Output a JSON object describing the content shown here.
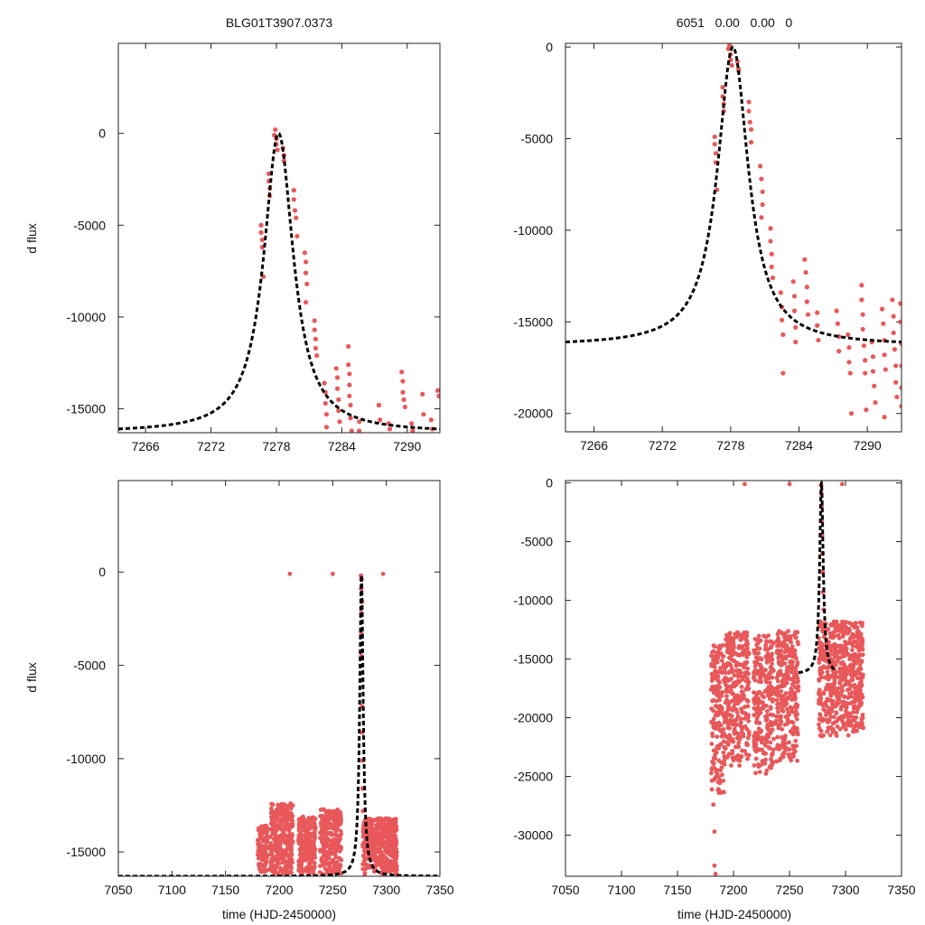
{
  "figure": {
    "title_left": "BLG01T3907.0373",
    "title_right": "6051   0.00   0.00   0",
    "xlabel": "time (HJD-2450000)",
    "ylabel": "d flux"
  },
  "colors": {
    "points": "#e8585a",
    "model": "#000000",
    "frame": "#222222"
  },
  "chart_data": [
    {
      "id": "top-left",
      "type": "scatter",
      "title": "BLG01T3907.0373",
      "xlabel": "",
      "ylabel": "d flux",
      "xlim": [
        7263.5,
        7293
      ],
      "ylim": [
        -16300,
        4900
      ],
      "xticks": [
        7266,
        7272,
        7278,
        7284,
        7290
      ],
      "yticks": [
        0,
        -5000,
        -10000,
        -15000
      ],
      "model": {
        "t0": 7278.2,
        "fmin": -16300,
        "width": 1.65,
        "shape": "lorentz"
      },
      "series": [
        {
          "name": "data",
          "points": [
            [
              7276.6,
              -5000
            ],
            [
              7276.6,
              -5400
            ],
            [
              7276.7,
              -5800
            ],
            [
              7276.7,
              -6200
            ],
            [
              7276.8,
              -7800
            ],
            [
              7277.3,
              -2200
            ],
            [
              7277.3,
              -2600
            ],
            [
              7277.4,
              -3000
            ],
            [
              7277.4,
              -3400
            ],
            [
              7277.8,
              -100
            ],
            [
              7277.9,
              200
            ],
            [
              7278.0,
              -300
            ],
            [
              7278.0,
              -600
            ],
            [
              7278.1,
              -900
            ],
            [
              7278.6,
              -800
            ],
            [
              7278.7,
              -1200
            ],
            [
              7278.7,
              -1500
            ],
            [
              7279.6,
              -3100
            ],
            [
              7279.6,
              -3600
            ],
            [
              7279.7,
              -4200
            ],
            [
              7279.8,
              -4600
            ],
            [
              7279.9,
              -5600
            ],
            [
              7280.6,
              -6500
            ],
            [
              7280.7,
              -7000
            ],
            [
              7280.7,
              -7600
            ],
            [
              7280.8,
              -8200
            ],
            [
              7280.7,
              -9200
            ],
            [
              7281.5,
              -10200
            ],
            [
              7281.5,
              -10700
            ],
            [
              7281.6,
              -11200
            ],
            [
              7281.6,
              -11700
            ],
            [
              7281.7,
              -12100
            ],
            [
              7282.4,
              -13600
            ],
            [
              7282.5,
              -14100
            ],
            [
              7282.5,
              -14700
            ],
            [
              7282.6,
              -15300
            ],
            [
              7282.6,
              -16000
            ],
            [
              7283.5,
              -12800
            ],
            [
              7283.6,
              -13300
            ],
            [
              7283.6,
              -13900
            ],
            [
              7283.7,
              -14500
            ],
            [
              7283.7,
              -15100
            ],
            [
              7283.8,
              -15700
            ],
            [
              7284.6,
              -11600
            ],
            [
              7284.6,
              -12600
            ],
            [
              7284.7,
              -13100
            ],
            [
              7284.7,
              -13700
            ],
            [
              7284.7,
              -14300
            ],
            [
              7284.8,
              -14800
            ],
            [
              7284.8,
              -15500
            ],
            [
              7284.9,
              -16200
            ],
            [
              7285.6,
              -15700
            ],
            [
              7285.6,
              -16200
            ],
            [
              7287.4,
              -14800
            ],
            [
              7287.5,
              -15600
            ],
            [
              7288.3,
              -15800
            ],
            [
              7288.4,
              -16100
            ],
            [
              7289.5,
              -13000
            ],
            [
              7289.6,
              -13500
            ],
            [
              7289.6,
              -14100
            ],
            [
              7289.7,
              -14500
            ],
            [
              7289.8,
              -14900
            ],
            [
              7290.4,
              -15800
            ],
            [
              7290.5,
              -16200
            ],
            [
              7291.4,
              -14200
            ],
            [
              7291.5,
              -15300
            ],
            [
              7292.2,
              -15600
            ],
            [
              7292.3,
              -16100
            ],
            [
              7292.8,
              -14000
            ],
            [
              7292.9,
              -14300
            ]
          ]
        }
      ]
    },
    {
      "id": "top-right",
      "type": "scatter",
      "title": "6051   0.00   0.00   0",
      "xlabel": "",
      "ylabel": "",
      "xlim": [
        7263.5,
        7293
      ],
      "ylim": [
        -21000,
        200
      ],
      "xticks": [
        7266,
        7272,
        7278,
        7284,
        7290
      ],
      "yticks": [
        0,
        -5000,
        -10000,
        -15000,
        -20000
      ],
      "model": {
        "t0": 7278.2,
        "fmin": -16300,
        "width": 1.65,
        "shape": "lorentz"
      },
      "series": [
        {
          "name": "data",
          "points": [
            [
              7276.6,
              -4900
            ],
            [
              7276.6,
              -5300
            ],
            [
              7276.7,
              -5800
            ],
            [
              7276.7,
              -6300
            ],
            [
              7276.8,
              -7800
            ],
            [
              7277.3,
              -2200
            ],
            [
              7277.3,
              -2700
            ],
            [
              7277.4,
              -3100
            ],
            [
              7277.4,
              -3500
            ],
            [
              7277.8,
              -100
            ],
            [
              7277.9,
              100
            ],
            [
              7278.0,
              -400
            ],
            [
              7278.0,
              -700
            ],
            [
              7278.1,
              -1000
            ],
            [
              7278.6,
              -800
            ],
            [
              7278.7,
              -1200
            ],
            [
              7278.7,
              -1300
            ],
            [
              7279.6,
              -3000
            ],
            [
              7279.6,
              -3500
            ],
            [
              7279.7,
              -4100
            ],
            [
              7279.8,
              -4500
            ],
            [
              7279.8,
              -5200
            ],
            [
              7280.6,
              -6500
            ],
            [
              7280.7,
              -7200
            ],
            [
              7280.8,
              -7900
            ],
            [
              7280.8,
              -8600
            ],
            [
              7280.7,
              -9300
            ],
            [
              7281.5,
              -9900
            ],
            [
              7281.5,
              -10600
            ],
            [
              7281.6,
              -11300
            ],
            [
              7281.6,
              -12000
            ],
            [
              7281.7,
              -12600
            ],
            [
              7282.4,
              -13400
            ],
            [
              7282.5,
              -14200
            ],
            [
              7282.5,
              -14900
            ],
            [
              7282.6,
              -15700
            ],
            [
              7282.6,
              -17800
            ],
            [
              7283.5,
              -12800
            ],
            [
              7283.6,
              -13600
            ],
            [
              7283.6,
              -14400
            ],
            [
              7283.7,
              -15300
            ],
            [
              7283.7,
              -16100
            ],
            [
              7284.5,
              -11600
            ],
            [
              7284.6,
              -12300
            ],
            [
              7284.7,
              -13100
            ],
            [
              7284.7,
              -13900
            ],
            [
              7284.8,
              -14600
            ],
            [
              7285.6,
              -14500
            ],
            [
              7285.6,
              -15200
            ],
            [
              7285.7,
              -16000
            ],
            [
              7287.3,
              -14400
            ],
            [
              7287.4,
              -15100
            ],
            [
              7287.5,
              -15800
            ],
            [
              7287.5,
              -16600
            ],
            [
              7288.3,
              -15700
            ],
            [
              7288.4,
              -16400
            ],
            [
              7288.4,
              -17200
            ],
            [
              7288.5,
              -17800
            ],
            [
              7289.5,
              -13000
            ],
            [
              7289.5,
              -13800
            ],
            [
              7289.6,
              -14600
            ],
            [
              7289.6,
              -15400
            ],
            [
              7289.7,
              -16300
            ],
            [
              7289.8,
              -17100
            ],
            [
              7289.8,
              -17800
            ],
            [
              7290.4,
              -16100
            ],
            [
              7290.5,
              -16900
            ],
            [
              7290.5,
              -17700
            ],
            [
              7290.6,
              -18500
            ],
            [
              7290.7,
              -19400
            ],
            [
              7291.3,
              -14300
            ],
            [
              7291.4,
              -15100
            ],
            [
              7291.5,
              -16000
            ],
            [
              7291.5,
              -16800
            ],
            [
              7291.6,
              -17600
            ],
            [
              7292.2,
              -13800
            ],
            [
              7292.3,
              -14700
            ],
            [
              7292.3,
              -15600
            ],
            [
              7292.4,
              -16500
            ],
            [
              7292.5,
              -17400
            ],
            [
              7292.5,
              -18300
            ],
            [
              7292.6,
              -19100
            ],
            [
              7292.9,
              -14000
            ],
            [
              7292.9,
              -15000
            ],
            [
              7293.0,
              -16200
            ],
            [
              7293.0,
              -17400
            ],
            [
              7293.0,
              -18600
            ],
            [
              7293.0,
              -19600
            ],
            [
              7289.9,
              -19800
            ],
            [
              7291.5,
              -20200
            ],
            [
              7288.6,
              -20000
            ]
          ]
        }
      ]
    },
    {
      "id": "bottom-left",
      "type": "scatter",
      "title": "",
      "xlabel": "time (HJD-2450000)",
      "ylabel": "d flux",
      "xlim": [
        7050,
        7350
      ],
      "ylim": [
        -16300,
        4900
      ],
      "xticks": [
        7050,
        7100,
        7150,
        7200,
        7250,
        7300,
        7350
      ],
      "yticks": [
        0,
        -5000,
        -10000,
        -15000
      ],
      "model": {
        "t0": 7276.8,
        "fmin": -16300,
        "width": 1.9,
        "shape": "lorentz"
      },
      "outliers": [
        [
          7210,
          -100
        ],
        [
          7250,
          -100
        ],
        [
          7297,
          -100
        ]
      ],
      "clusters": [
        {
          "x": [
            7180,
            7190
          ],
          "ymin": -16100,
          "ymax": -13600
        },
        {
          "x": [
            7192,
            7213
          ],
          "ymin": -16200,
          "ymax": -12400
        },
        {
          "x": [
            7218,
            7234
          ],
          "ymin": -16200,
          "ymax": -13100
        },
        {
          "x": [
            7238,
            7258
          ],
          "ymin": -16200,
          "ymax": -12700
        },
        {
          "x": [
            7278,
            7310
          ],
          "ymin": -16200,
          "ymax": -13200
        }
      ],
      "series": [
        {
          "name": "data",
          "points": [
            [
              7276.4,
              -200
            ],
            [
              7276.6,
              -900
            ],
            [
              7276.7,
              -2200
            ],
            [
              7276.8,
              -3300
            ],
            [
              7276.9,
              -4500
            ],
            [
              7277.1,
              -5800
            ],
            [
              7277.3,
              -7200
            ],
            [
              7277.5,
              -8600
            ],
            [
              7277.8,
              -10100
            ],
            [
              7278.0,
              -11600
            ],
            [
              7278.3,
              -12800
            ],
            [
              7276.9,
              -400
            ],
            [
              7277.2,
              -1600
            ]
          ]
        }
      ]
    },
    {
      "id": "bottom-right",
      "type": "scatter",
      "title": "",
      "xlabel": "time (HJD-2450000)",
      "ylabel": "",
      "xlim": [
        7050,
        7350
      ],
      "ylim": [
        -33500,
        200
      ],
      "xticks": [
        7050,
        7100,
        7150,
        7200,
        7250,
        7300,
        7350
      ],
      "yticks": [
        0,
        -5000,
        -10000,
        -15000,
        -20000,
        -25000,
        -30000
      ],
      "model": {
        "t0": 7278.5,
        "fmin": -16300,
        "width": 1.9,
        "shape": "lorentz",
        "x_range": [
          7258,
          7292
        ]
      },
      "outliers": [
        [
          7210,
          -100
        ],
        [
          7250,
          -100
        ],
        [
          7297,
          -100
        ],
        [
          7183,
          -29700
        ],
        [
          7183,
          -32600
        ],
        [
          7184,
          -33300
        ],
        [
          7182,
          -27400
        ]
      ],
      "clusters": [
        {
          "x": [
            7180,
            7192
          ],
          "ymin": -26500,
          "ymax": -13800
        },
        {
          "x": [
            7192,
            7214
          ],
          "ymin": -24200,
          "ymax": -12700
        },
        {
          "x": [
            7218,
            7236
          ],
          "ymin": -24800,
          "ymax": -13000
        },
        {
          "x": [
            7238,
            7258
          ],
          "ymin": -23800,
          "ymax": -12600
        },
        {
          "x": [
            7276,
            7316
          ],
          "ymin": -21600,
          "ymax": -11800
        }
      ],
      "series": [
        {
          "name": "data",
          "points": [
            [
              7278.2,
              -200
            ],
            [
              7278.4,
              -900
            ],
            [
              7278.6,
              -2000
            ],
            [
              7278.8,
              -3200
            ],
            [
              7279.0,
              -4500
            ],
            [
              7279.3,
              -6000
            ],
            [
              7279.6,
              -7600
            ],
            [
              7280.0,
              -9300
            ],
            [
              7280.5,
              -10800
            ],
            [
              7281.0,
              -12000
            ]
          ]
        }
      ]
    }
  ]
}
